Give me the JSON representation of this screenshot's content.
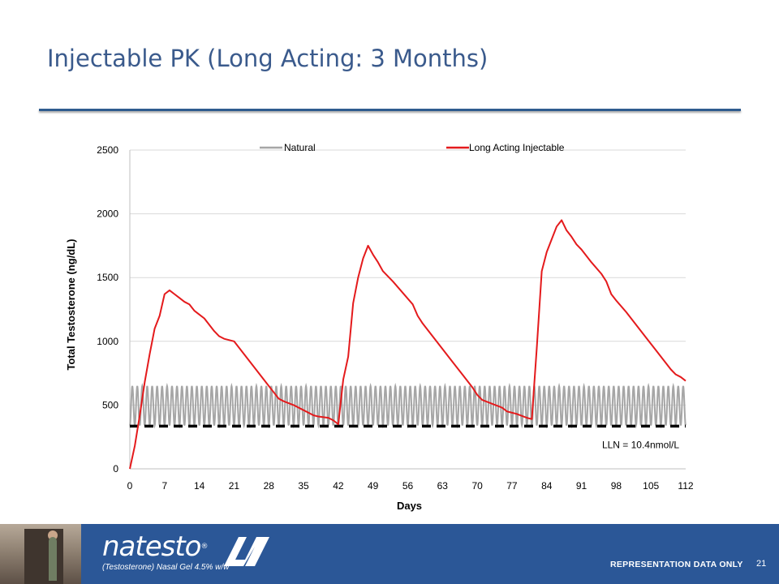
{
  "slide": {
    "title": "Injectable PK (Long Acting: 3 Months)",
    "page_number": "21",
    "disclaimer": "REPRESENTATION  DATA ONLY"
  },
  "footer": {
    "logo_text": "natesto",
    "logo_reg": "®",
    "logo_subtitle": "(Testosterone) Nasal Gel 4.5% w/w"
  },
  "colors": {
    "natural": "#a6a6a6",
    "injectable": "#e41a1c",
    "lln": "#000000",
    "footer": "#2b5797",
    "title": "#3a5a8c"
  },
  "chart_data": {
    "type": "line",
    "title": "",
    "xlabel": "Days",
    "ylabel": "Total Testosterone (ng/dL)",
    "xlim": [
      0,
      112
    ],
    "ylim": [
      0,
      2500
    ],
    "xticks": [
      "0",
      "7",
      "14",
      "21",
      "28",
      "35",
      "42",
      "49",
      "56",
      "63",
      "70",
      "77",
      "84",
      "91",
      "98",
      "105",
      "112"
    ],
    "yticks": [
      "0",
      "500",
      "1000",
      "1500",
      "2000",
      "2500"
    ],
    "grid": "horizontal",
    "legend": "top",
    "series": [
      {
        "name": "Natural",
        "kind": "daily-oscillation",
        "min": 340,
        "max": 650,
        "period_days": 1
      },
      {
        "name": "Long Acting Injectable",
        "points": [
          [
            0,
            0
          ],
          [
            1,
            180
          ],
          [
            2,
            420
          ],
          [
            3,
            680
          ],
          [
            4,
            900
          ],
          [
            5,
            1100
          ],
          [
            6,
            1200
          ],
          [
            7,
            1370
          ],
          [
            8,
            1400
          ],
          [
            9,
            1370
          ],
          [
            10,
            1340
          ],
          [
            11,
            1310
          ],
          [
            12,
            1290
          ],
          [
            13,
            1240
          ],
          [
            14,
            1210
          ],
          [
            15,
            1180
          ],
          [
            16,
            1130
          ],
          [
            17,
            1080
          ],
          [
            18,
            1040
          ],
          [
            19,
            1020
          ],
          [
            21,
            1000
          ],
          [
            23,
            900
          ],
          [
            25,
            800
          ],
          [
            27,
            700
          ],
          [
            29,
            600
          ],
          [
            30,
            550
          ],
          [
            31,
            530
          ],
          [
            33,
            500
          ],
          [
            35,
            460
          ],
          [
            37,
            420
          ],
          [
            38,
            410
          ],
          [
            40,
            400
          ],
          [
            41,
            380
          ],
          [
            42,
            350
          ],
          [
            43,
            700
          ],
          [
            44,
            880
          ],
          [
            45,
            1300
          ],
          [
            46,
            1500
          ],
          [
            47,
            1650
          ],
          [
            48,
            1750
          ],
          [
            49,
            1680
          ],
          [
            50,
            1620
          ],
          [
            51,
            1550
          ],
          [
            53,
            1470
          ],
          [
            55,
            1380
          ],
          [
            57,
            1290
          ],
          [
            58,
            1200
          ],
          [
            59,
            1140
          ],
          [
            61,
            1040
          ],
          [
            63,
            940
          ],
          [
            65,
            840
          ],
          [
            67,
            740
          ],
          [
            69,
            640
          ],
          [
            70,
            580
          ],
          [
            71,
            540
          ],
          [
            73,
            510
          ],
          [
            75,
            480
          ],
          [
            76,
            450
          ],
          [
            78,
            430
          ],
          [
            80,
            400
          ],
          [
            81,
            390
          ],
          [
            82,
            950
          ],
          [
            83,
            1550
          ],
          [
            84,
            1700
          ],
          [
            85,
            1800
          ],
          [
            86,
            1900
          ],
          [
            87,
            1950
          ],
          [
            88,
            1870
          ],
          [
            89,
            1820
          ],
          [
            90,
            1760
          ],
          [
            91,
            1720
          ],
          [
            93,
            1620
          ],
          [
            95,
            1530
          ],
          [
            96,
            1470
          ],
          [
            97,
            1370
          ],
          [
            98,
            1320
          ],
          [
            100,
            1230
          ],
          [
            102,
            1130
          ],
          [
            104,
            1030
          ],
          [
            106,
            930
          ],
          [
            108,
            830
          ],
          [
            109,
            780
          ],
          [
            110,
            740
          ],
          [
            111,
            720
          ],
          [
            112,
            690
          ]
        ]
      }
    ],
    "reference_lines": [
      {
        "label": "LLN = 10.4nmol/L",
        "y": 335,
        "style": "dashed"
      }
    ]
  }
}
